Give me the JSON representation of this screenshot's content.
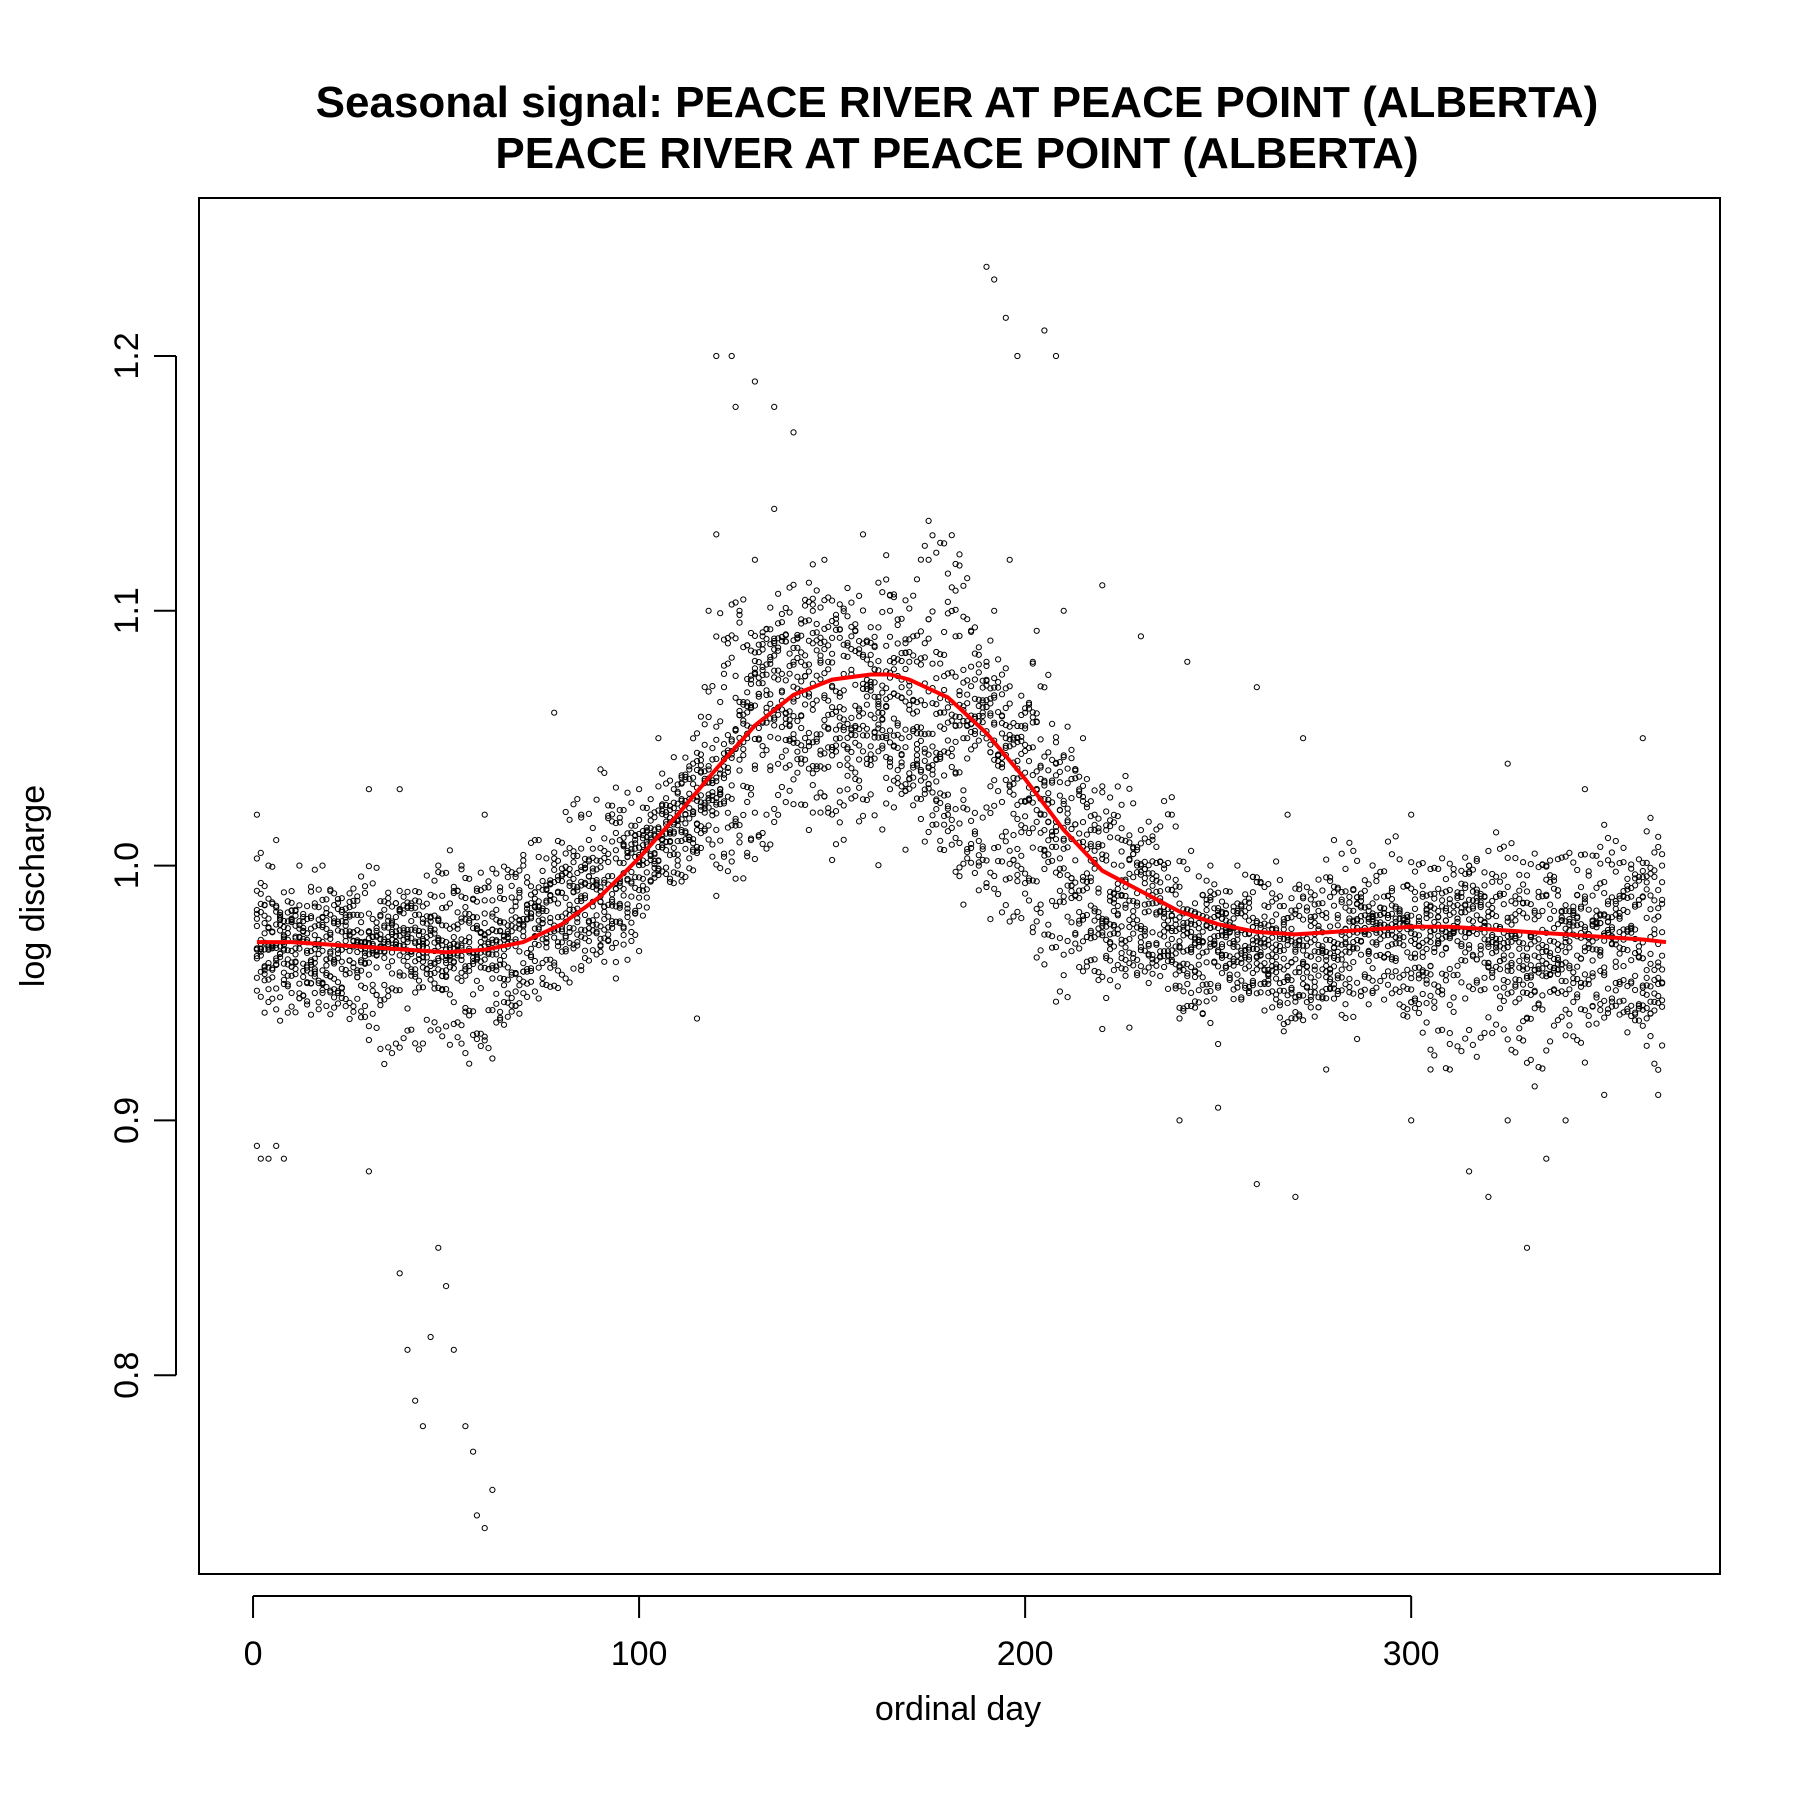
{
  "chart_data": {
    "type": "scatter",
    "title": "Seasonal signal: PEACE RIVER AT PEACE POINT (ALBERTA)",
    "subtitle": "PEACE RIVER AT PEACE POINT (ALBERTA)",
    "xlabel": "ordinal day",
    "ylabel": "log discharge",
    "xlim": [
      -14,
      380
    ],
    "ylim": [
      0.722,
      1.262
    ],
    "xticks": [
      0,
      100,
      200,
      300
    ],
    "yticks": [
      0.8,
      0.9,
      1.0,
      1.1,
      1.2
    ],
    "xtick_labels": [
      "0",
      "100",
      "200",
      "300"
    ],
    "ytick_labels": [
      "0.8",
      "0.9",
      "1.0",
      "1.1",
      "1.2"
    ],
    "grid": false,
    "legend": "none",
    "colors": {
      "points": "#000000",
      "trend": "#ff0000"
    },
    "points_description_count_estimate": 4700,
    "series": [
      {
        "kind": "points",
        "x": [
          1,
          2,
          3,
          4,
          5,
          6,
          8,
          10,
          12,
          14,
          16,
          18,
          20,
          22,
          25,
          28,
          30,
          32,
          35,
          38,
          40,
          42,
          44,
          46,
          48,
          50,
          52,
          54,
          56,
          58,
          60,
          62,
          64,
          66,
          68,
          70,
          72,
          74,
          76,
          78,
          80,
          85,
          90,
          95,
          100,
          105,
          110,
          112,
          115,
          118,
          120,
          122,
          124,
          126,
          128,
          130,
          132,
          135,
          138,
          140,
          142,
          145,
          148,
          150,
          152,
          155,
          158,
          160,
          162,
          165,
          168,
          170,
          172,
          175,
          178,
          180,
          182,
          185,
          188,
          190,
          192,
          194,
          196,
          198,
          200,
          202,
          205,
          208,
          210,
          212,
          215,
          218,
          220,
          222,
          225,
          228,
          230,
          232,
          235,
          238,
          240,
          242,
          245,
          248,
          250,
          252,
          255,
          258,
          260,
          262,
          265,
          268,
          270,
          272,
          275,
          278,
          280,
          285,
          290,
          295,
          300,
          305,
          310,
          315,
          320,
          325,
          330,
          335,
          340,
          345,
          350,
          355,
          360,
          364,
          1,
          2,
          4,
          6,
          8,
          10,
          30,
          38,
          40,
          42,
          44,
          46,
          48,
          50,
          52,
          55,
          57,
          58,
          60,
          62,
          120,
          125,
          130,
          135,
          140,
          190,
          192,
          195,
          198,
          205,
          208,
          240,
          250,
          260,
          270,
          300,
          305,
          310,
          315,
          320,
          325,
          330,
          335,
          340,
          350,
          360,
          364
        ],
        "y": [
          1.02,
          1.005,
          0.96,
          1.0,
          0.985,
          1.01,
          0.97,
          0.99,
          1.0,
          0.96,
          0.95,
          1.0,
          0.99,
          0.95,
          0.98,
          0.97,
          1.03,
          0.96,
          0.98,
          1.03,
          0.97,
          0.99,
          0.96,
          0.98,
          1.0,
          0.97,
          0.99,
          1.0,
          0.97,
          0.99,
          1.02,
          0.98,
          0.99,
          0.96,
          0.97,
          1.0,
          0.98,
          1.01,
          0.97,
          1.06,
          0.98,
          1.02,
          0.99,
          1.01,
          1.03,
          1.05,
          1.0,
          1.02,
          0.94,
          1.1,
          1.13,
          1.07,
          1.2,
          1.1,
          1.05,
          1.12,
          1.09,
          1.18,
          1.06,
          1.08,
          1.04,
          1.1,
          1.12,
          1.07,
          1.05,
          1.09,
          1.13,
          1.07,
          1.06,
          1.1,
          1.05,
          1.08,
          1.04,
          1.12,
          1.06,
          1.02,
          1.09,
          1.05,
          1.0,
          1.08,
          1.1,
          1.04,
          1.12,
          1.0,
          1.06,
          1.08,
          1.02,
          1.04,
          1.1,
          0.99,
          1.05,
          1.02,
          1.11,
          0.97,
          1.0,
          0.98,
          1.09,
          0.96,
          0.99,
          1.02,
          0.94,
          1.08,
          0.97,
          1.0,
          0.93,
          0.99,
          1.0,
          0.95,
          1.07,
          0.98,
          0.96,
          1.02,
          0.94,
          1.05,
          0.98,
          0.92,
          1.01,
          0.97,
          0.95,
          0.99,
          1.02,
          0.97,
          0.93,
          1.0,
          0.98,
          1.04,
          0.95,
          1.0,
          0.97,
          1.03,
          0.96,
          0.99,
          1.05,
          0.98,
          0.89,
          0.885,
          0.885,
          0.89,
          0.885,
          0.95,
          0.88,
          0.84,
          0.81,
          0.79,
          0.78,
          0.815,
          0.85,
          0.835,
          0.81,
          0.78,
          0.77,
          0.745,
          0.74,
          0.755,
          1.2,
          1.18,
          1.19,
          1.14,
          1.17,
          1.235,
          1.23,
          1.215,
          1.2,
          1.21,
          1.2,
          0.9,
          0.905,
          0.875,
          0.87,
          0.9,
          0.92,
          0.92,
          0.88,
          0.87,
          0.9,
          0.85,
          0.885,
          0.9,
          0.91,
          0.95,
          0.91
        ]
      }
    ],
    "trend": {
      "name": "",
      "x": [
        1,
        10,
        20,
        30,
        40,
        50,
        60,
        70,
        80,
        90,
        100,
        110,
        120,
        130,
        140,
        150,
        160,
        165,
        170,
        180,
        190,
        200,
        210,
        220,
        230,
        240,
        250,
        260,
        270,
        280,
        290,
        300,
        310,
        320,
        330,
        340,
        350,
        360,
        366
      ],
      "y": [
        0.97,
        0.97,
        0.969,
        0.968,
        0.967,
        0.966,
        0.967,
        0.97,
        0.977,
        0.988,
        1.003,
        1.02,
        1.038,
        1.055,
        1.067,
        1.073,
        1.075,
        1.075,
        1.073,
        1.066,
        1.052,
        1.034,
        1.014,
        0.998,
        0.99,
        0.982,
        0.977,
        0.974,
        0.973,
        0.974,
        0.975,
        0.976,
        0.976,
        0.975,
        0.974,
        0.973,
        0.972,
        0.971,
        0.97
      ]
    }
  }
}
